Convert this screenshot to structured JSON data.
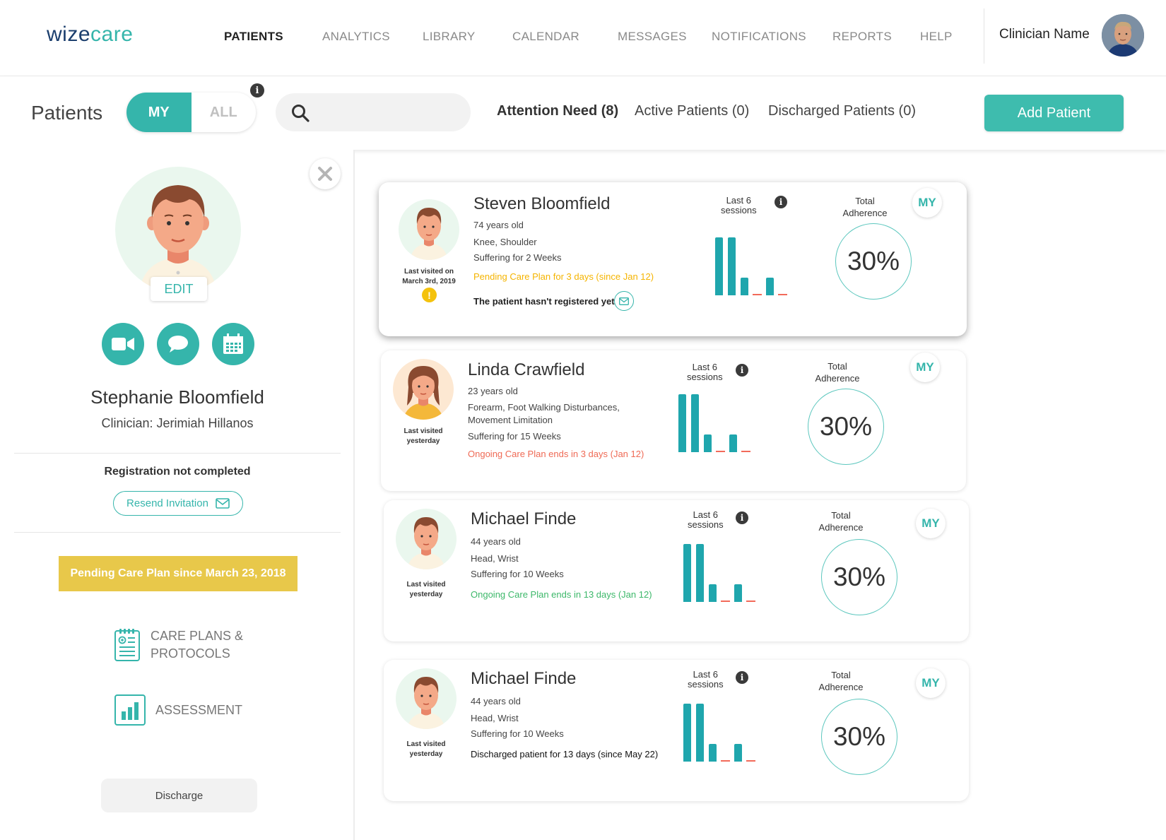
{
  "brand": {
    "logo_part1": "wize",
    "logo_part2": "care"
  },
  "nav": {
    "items": [
      {
        "label": "PATIENTS"
      },
      {
        "label": "ANALYTICS"
      },
      {
        "label": "LIBRARY"
      },
      {
        "label": "CALENDAR"
      },
      {
        "label": "MESSAGES"
      },
      {
        "label": "NOTIFICATIONS"
      },
      {
        "label": "REPORTS"
      },
      {
        "label": "HELP"
      }
    ],
    "active": "PATIENTS",
    "clinician_name": "Clinician Name"
  },
  "subheader": {
    "title": "Patients",
    "toggle_my": "MY",
    "toggle_all": "ALL",
    "info_glyph": "i",
    "search_placeholder": "",
    "search_value": "",
    "filters": [
      {
        "label": "Attention Need (8)"
      },
      {
        "label": "Active Patients (0)"
      },
      {
        "label": "Discharged Patients (0)"
      }
    ],
    "add_patient": "Add Patient"
  },
  "profile": {
    "edit": "EDIT",
    "name": "Stephanie Bloomfield",
    "clinician": "Clinician: Jerimiah Hillanos",
    "registration": "Registration not completed",
    "resend": "Resend Invitation",
    "pending_banner": "Pending Care Plan since March 23, 2018",
    "care_plans_line1": "CARE PLANS &",
    "care_plans_line2": "PROTOCOLS",
    "assessment": "ASSESSMENT",
    "discharge": "Discharge"
  },
  "cards": [
    {
      "name": "Steven Bloomfield",
      "age": "74 years old",
      "areas": "Knee, Shoulder",
      "suffering": "Suffering for 2 Weeks",
      "status": "Pending Care Plan for 3 days (since Jan 12)",
      "status_color": "#f5b400",
      "note": "The patient hasn't registered yet",
      "visit_line1": "Last visited on",
      "visit_line2": "March 3rd, 2019",
      "warning_glyph": "!",
      "sessions_line1": "Last 6",
      "sessions_line2": "sessions",
      "adherence_line1": "Total",
      "adherence_line2": "Adherence",
      "adherence": "30%",
      "badge": "MY",
      "session_levels": [
        1.0,
        1.0,
        0.3,
        0,
        0.3,
        0
      ]
    },
    {
      "name": "Linda Crawfield",
      "age": "23 years old",
      "areas_line1": "Forearm, Foot Walking Disturbances,",
      "areas_line2": "Movement Limitation",
      "suffering": "Suffering for 15 Weeks",
      "status": "Ongoing Care Plan ends in 3 days (Jan 12)",
      "status_color": "#ef6a55",
      "visit_line1": "Last visited",
      "visit_line2": "yesterday",
      "sessions_line1": "Last 6",
      "sessions_line2": "sessions",
      "adherence_line1": "Total",
      "adherence_line2": "Adherence",
      "adherence": "30%",
      "badge": "MY",
      "session_levels": [
        1.0,
        1.0,
        0.3,
        0,
        0.3,
        0
      ]
    },
    {
      "name": "Michael Finde",
      "age": "44 years old",
      "areas": "Head, Wrist",
      "suffering": "Suffering for 10 Weeks",
      "status": "Ongoing Care Plan ends in 13 days (Jan 12)",
      "status_color": "#3db86a",
      "visit_line1": "Last visited",
      "visit_line2": "yesterday",
      "sessions_line1": "Last 6",
      "sessions_line2": "sessions",
      "adherence_line1": "Total",
      "adherence_line2": "Adherence",
      "adherence": "30%",
      "badge": "MY",
      "session_levels": [
        1.0,
        1.0,
        0.3,
        0,
        0.3,
        0
      ]
    },
    {
      "name": "Michael Finde",
      "age": "44 years old",
      "areas": "Head, Wrist",
      "suffering": "Suffering for 10 Weeks",
      "status": "Discharged patient for 13 days (since May 22)",
      "status_color": "#111111",
      "visit_line1": "Last visited",
      "visit_line2": "yesterday",
      "sessions_line1": "Last 6",
      "sessions_line2": "sessions",
      "adherence_line1": "Total",
      "adherence_line2": "Adherence",
      "adherence": "30%",
      "badge": "MY",
      "session_levels": [
        1.0,
        1.0,
        0.3,
        0,
        0.3,
        0
      ]
    }
  ],
  "colors": {
    "accent": "#35b5ab",
    "bar": "#1fa6ad",
    "missed": "#f26a5a",
    "pending_banner": "#e8c84a"
  }
}
